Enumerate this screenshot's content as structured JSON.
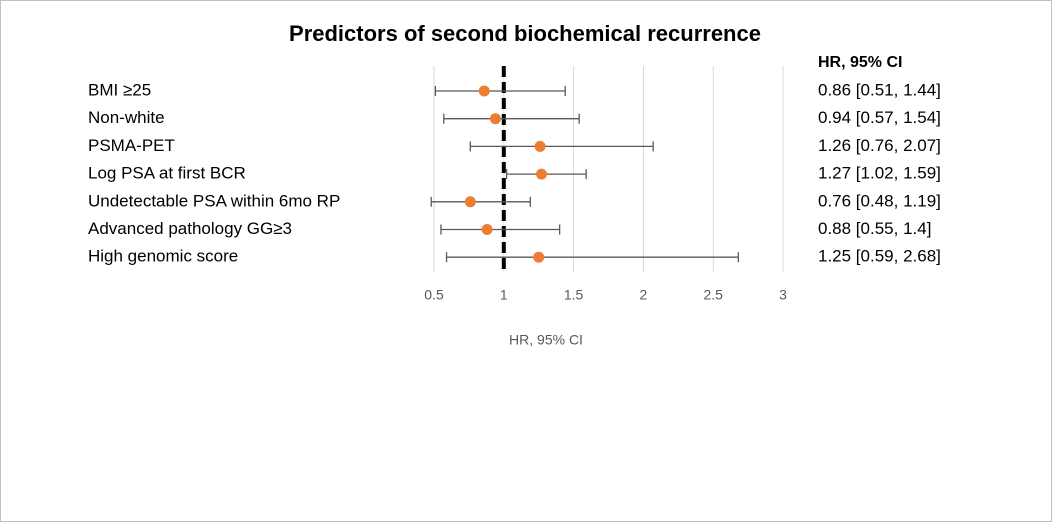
{
  "chart_data": {
    "type": "forest",
    "title": "Predictors of second biochemical recurrence",
    "column_header": "HR, 95% CI",
    "x_label": "HR, 95% CI",
    "categories": [
      "BMI ≥25",
      "Non-white",
      "PSMA-PET",
      "Log PSA at first BCR",
      "Undetectable PSA within 6mo RP",
      "Advanced pathology GG≥3",
      "High genomic score"
    ],
    "values": [
      0.86,
      0.94,
      1.26,
      1.27,
      0.76,
      0.88,
      1.25
    ],
    "lower": [
      0.51,
      0.57,
      0.76,
      1.02,
      0.48,
      0.55,
      0.59
    ],
    "upper": [
      1.44,
      1.54,
      2.07,
      1.59,
      1.19,
      1.4,
      2.68
    ],
    "value_labels": [
      "0.86 [0.51, 1.44]",
      "0.94 [0.57, 1.54]",
      "1.26 [0.76, 2.07]",
      "1.27 [1.02, 1.59]",
      "0.76 [0.48, 1.19]",
      "0.88 [0.55, 1.4]",
      "1.25 [0.59, 2.68]"
    ],
    "reference_line": 1,
    "xlim": [
      0.5,
      3
    ],
    "xticks": [
      0.5,
      1,
      1.5,
      2,
      2.5,
      3
    ],
    "grid": true,
    "color": "#ed7d31",
    "error_color": "#595959"
  }
}
